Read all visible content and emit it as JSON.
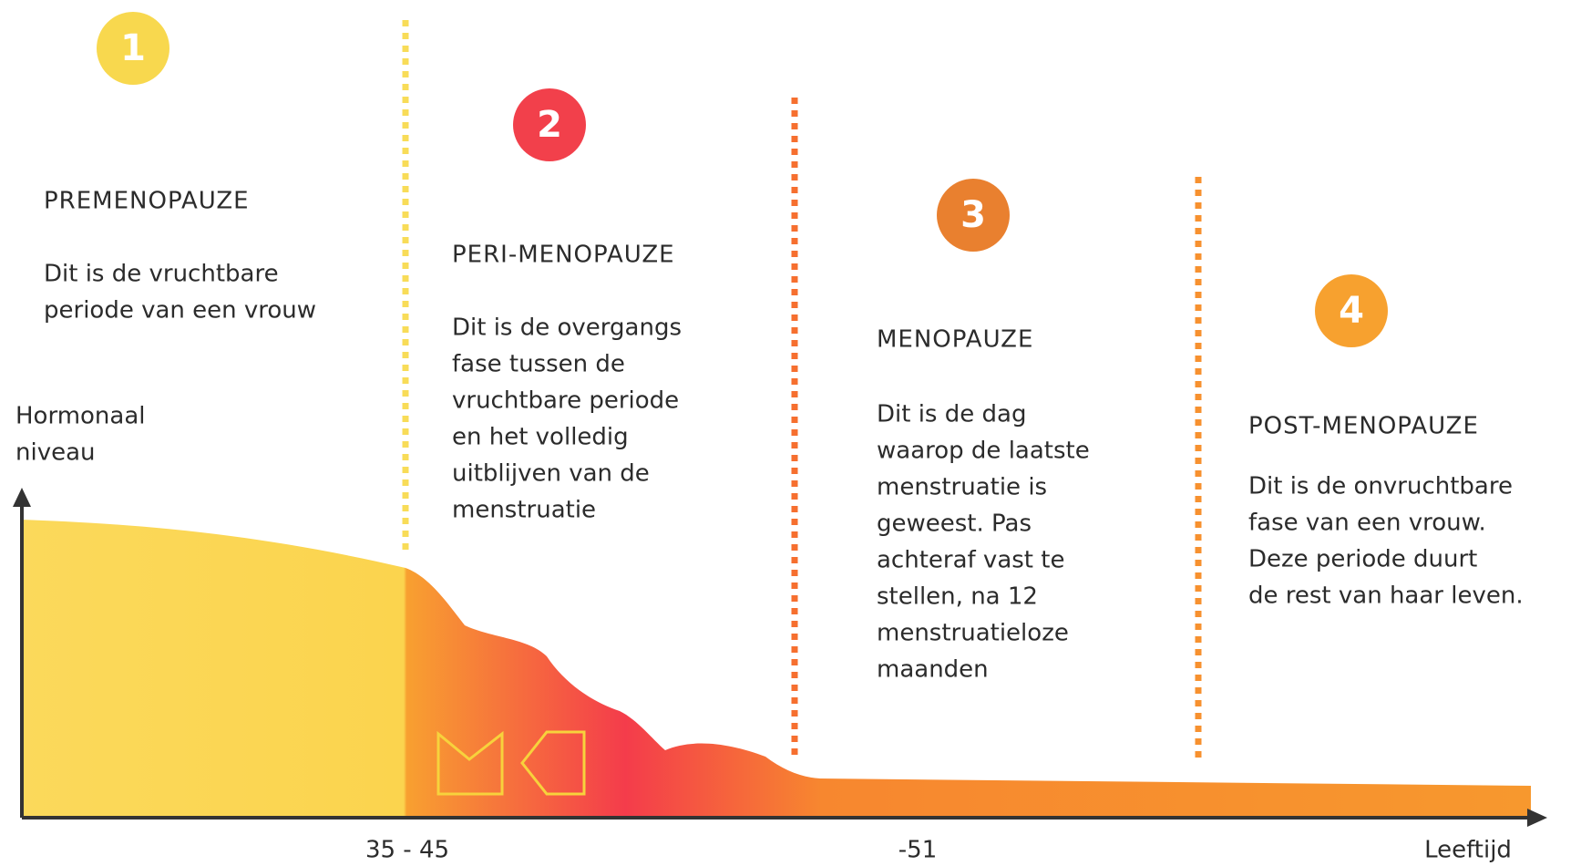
{
  "phases": [
    {
      "number": "1",
      "title": "PREMENOPAUZE",
      "description": [
        "Dit is de vruchtbare",
        "periode van een vrouw"
      ]
    },
    {
      "number": "2",
      "title": "PERI-MENOPAUZE",
      "description": [
        "Dit is de overgangs",
        "fase tussen de",
        "vruchtbare periode",
        "en het volledig",
        "uitblijven van de",
        "menstruatie"
      ]
    },
    {
      "number": "3",
      "title": "MENOPAUZE",
      "description": [
        "Dit is de dag",
        "waarop de laatste",
        "menstruatie is",
        "geweest. Pas",
        "achteraf vast te",
        "stellen, na 12",
        "menstruatieloze",
        "maanden"
      ]
    },
    {
      "number": "4",
      "title": "POST-MENOPAUZE",
      "description": [
        "Dit is de onvruchtbare",
        "fase van een vrouw.",
        "Deze periode duurt",
        "de rest van haar leven."
      ]
    }
  ],
  "y_axis_label": [
    "Hormonaal",
    "niveau"
  ],
  "x_axis_label": "Leeftijd",
  "x_ticks": [
    "35 - 45",
    "-51"
  ]
}
